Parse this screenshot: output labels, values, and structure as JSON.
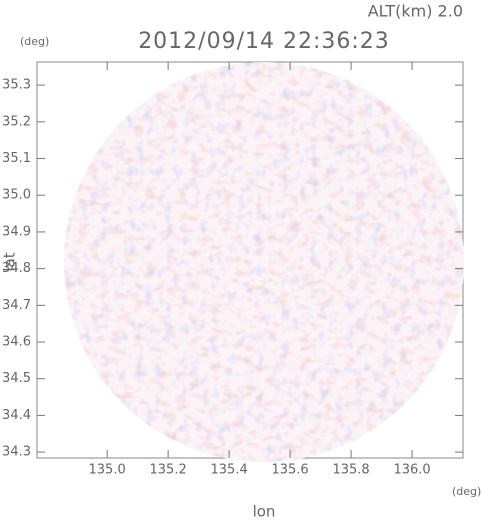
{
  "chart_data": {
    "type": "radar-ppi",
    "annotation": "ALT(km) 2.0",
    "title": "2012/09/14 22:36:23",
    "y_unit": "(deg)",
    "x_unit": "(deg)",
    "ylabel": "lat",
    "xlabel": "lon",
    "xlim": [
      134.77,
      136.167
    ],
    "ylim": [
      34.284,
      35.363
    ],
    "xticks": [
      {
        "value": 135,
        "label": "135.0"
      },
      135.2,
      135.4,
      135.6,
      135.8,
      {
        "value": 136,
        "label": "136.0"
      }
    ],
    "yticks": [
      {
        "value": 34.3,
        "label": "34.3"
      },
      34.4,
      34.5,
      34.6,
      34.7,
      34.8,
      34.9,
      {
        "value": 35,
        "label": "35.0"
      },
      35.1,
      35.2,
      35.3
    ]
  }
}
